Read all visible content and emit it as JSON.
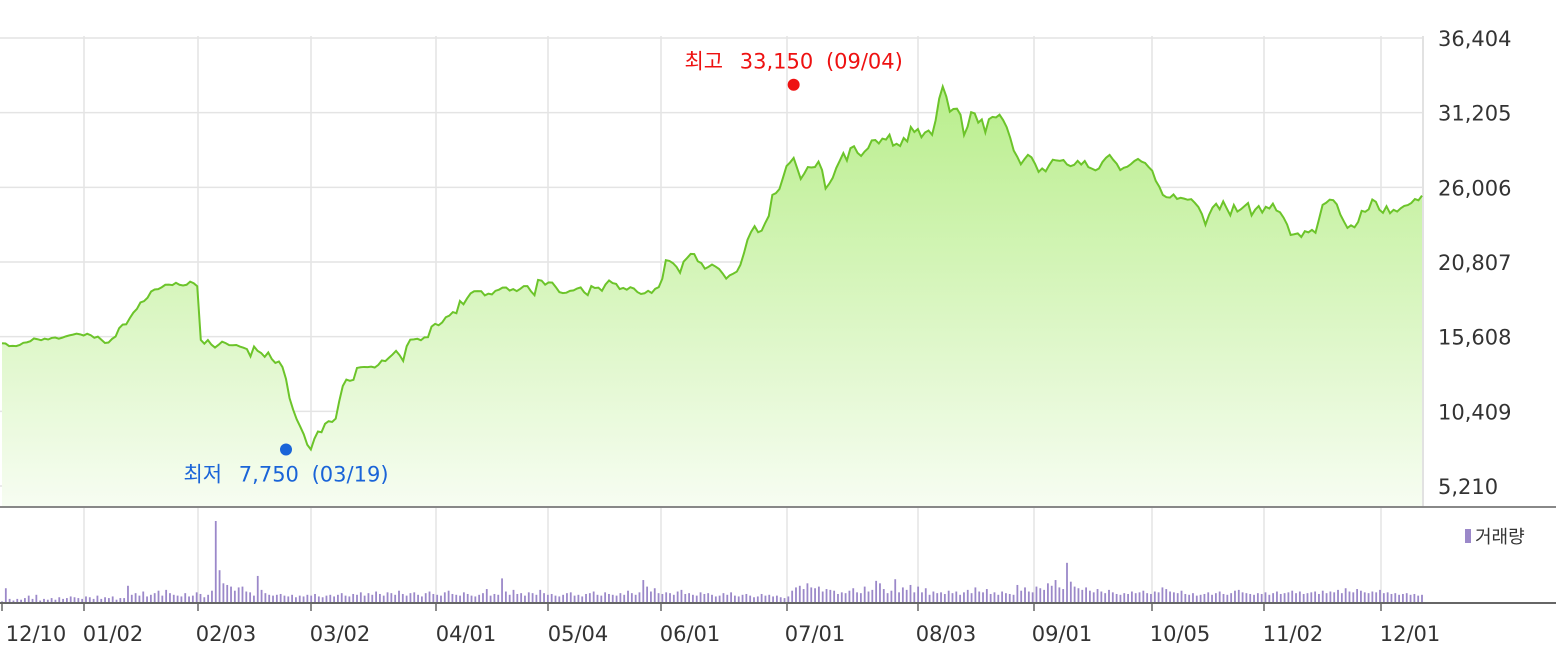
{
  "chart_data": [
    {
      "type": "area",
      "title": "",
      "xlabel": "",
      "ylabel": "",
      "ylim": [
        5210,
        36404
      ],
      "y_ticks": [
        "36,404",
        "31,205",
        "26,006",
        "20,807",
        "15,608",
        "10,409",
        "5,210"
      ],
      "y_tick_values": [
        36404,
        31205,
        26006,
        20807,
        15608,
        10409,
        5210
      ],
      "x_ticks": [
        "12/10",
        "01/02",
        "02/03",
        "03/02",
        "04/01",
        "05/04",
        "06/01",
        "07/01",
        "08/03",
        "09/01",
        "10/05",
        "11/02",
        "12/01"
      ],
      "grid": true,
      "colors": {
        "line": "#6cc42a",
        "fill_top": "#b9ee8c",
        "fill_bottom": "#f7fdf2",
        "high": "#ee1111",
        "low": "#1a64d8"
      },
      "high": {
        "label": "최고",
        "value_text": "33,150",
        "date": "(09/04)",
        "value": 33150,
        "x_index": 223
      },
      "low": {
        "label": "최저",
        "value_text": "7,750",
        "date": "(03/19)",
        "value": 7750,
        "x_index": 80
      },
      "series": [
        {
          "values": [
            15150,
            15130,
            14950,
            14970,
            14950,
            15030,
            15180,
            15210,
            15290,
            15480,
            15430,
            15360,
            15470,
            15410,
            15520,
            15550,
            15470,
            15540,
            15630,
            15700,
            15750,
            15820,
            15770,
            15690,
            15810,
            15710,
            15530,
            15610,
            15390,
            15170,
            15200,
            15450,
            15620,
            16200,
            16450,
            16470,
            16900,
            17280,
            17540,
            17990,
            18080,
            18320,
            18750,
            18890,
            18920,
            19050,
            19220,
            19230,
            19200,
            19360,
            19220,
            19170,
            19220,
            19440,
            19330,
            19120,
            15380,
            15120,
            15370,
            15050,
            14850,
            15040,
            15260,
            15160,
            15020,
            15010,
            15030,
            14920,
            14840,
            14740,
            14230,
            14920,
            14620,
            14470,
            14200,
            14510,
            14050,
            13780,
            13880,
            13490,
            12660,
            11330,
            10530,
            9860,
            9350,
            8810,
            8080,
            7750,
            8500,
            9000,
            8950,
            9540,
            9720,
            9670,
            9900,
            11120,
            12170,
            12620,
            12530,
            12600,
            13430,
            13480,
            13500,
            13490,
            13520,
            13460,
            13640,
            13950,
            13910,
            14140,
            14360,
            14620,
            14320,
            13920,
            14940,
            15400,
            15420,
            15460,
            15360,
            15560,
            15570,
            16310,
            16500,
            16400,
            16600,
            16960,
            17070,
            17320,
            17240,
            18090,
            17860,
            18270,
            18620,
            18770,
            18780,
            18770,
            18480,
            18600,
            18550,
            18800,
            18880,
            19020,
            19030,
            18820,
            18920,
            18780,
            18940,
            19130,
            19130,
            18770,
            18500,
            19560,
            19510,
            19230,
            19390,
            19370,
            19060,
            18710,
            18640,
            18670,
            18800,
            18830,
            18960,
            19040,
            18700,
            18500,
            19130,
            19000,
            19020,
            18800,
            19240,
            19520,
            19340,
            19280,
            18920,
            19000,
            18880,
            19050,
            18960,
            18710,
            18580,
            18630,
            18800,
            18650,
            18940,
            19060,
            19640,
            20930,
            20880,
            20730,
            20470,
            20060,
            20830,
            21090,
            21370,
            21360,
            20860,
            20730,
            20340,
            20470,
            20630,
            20490,
            20320,
            20010,
            19650,
            19880,
            20000,
            20140,
            20610,
            21420,
            22350,
            22900,
            23300,
            22880,
            22990,
            23530,
            24010,
            25480,
            25600,
            25890,
            26680,
            27490,
            27740,
            28050,
            27330,
            26590,
            26970,
            27420,
            27390,
            27420,
            27800,
            27210,
            25920,
            26250,
            26660,
            27350,
            27860,
            28390,
            27870,
            28730,
            28870,
            28410,
            28190,
            28500,
            28730,
            29270,
            29300,
            29060,
            29400,
            29330,
            29670,
            28910,
            29040,
            28880,
            29440,
            29200,
            30210,
            29860,
            30070,
            29490,
            29820,
            29960,
            29660,
            30680,
            32180,
            33020,
            32330,
            31270,
            31460,
            31480,
            31060,
            29640,
            30230,
            31240,
            31150,
            30510,
            30730,
            29830,
            30750,
            30910,
            30870,
            31060,
            30690,
            30200,
            29460,
            28560,
            28130,
            27610,
            27960,
            28270,
            28100,
            27640,
            27080,
            27320,
            27120,
            27560,
            27930,
            27880,
            27850,
            27910,
            27600,
            27480,
            27570,
            27850,
            27590,
            27840,
            27420,
            27310,
            27190,
            27320,
            27770,
            28070,
            28260,
            27930,
            27650,
            27210,
            27370,
            27440,
            27620,
            27840,
            27980,
            27800,
            27700,
            27420,
            27170,
            26460,
            26050,
            25480,
            25320,
            25290,
            25510,
            25200,
            25280,
            25220,
            25140,
            25180,
            24930,
            24640,
            24150,
            23400,
            24080,
            24600,
            24860,
            24480,
            25030,
            24540,
            24060,
            24780,
            24320,
            24480,
            24700,
            24910,
            24050,
            24450,
            24700,
            24250,
            24650,
            24530,
            24870,
            24390,
            24270,
            23900,
            23420,
            22690,
            22740,
            22800,
            22550,
            22950,
            22870,
            23040,
            22840,
            23800,
            24780,
            24930,
            25150,
            25110,
            24820,
            24110,
            23630,
            23180,
            23360,
            23220,
            23590,
            24370,
            24300,
            24480,
            25160,
            25000,
            24440,
            24230,
            24690,
            24200,
            24440,
            24320,
            24550,
            24710,
            24770,
            24920,
            25190,
            25100,
            25430
          ]
        }
      ]
    },
    {
      "type": "bar",
      "title": "",
      "legend": [
        "거래량"
      ],
      "legend_position": "top-right",
      "colors": {
        "bar": "#9b88c9"
      },
      "x_ticks": [
        "12/10",
        "01/02",
        "02/03",
        "03/02",
        "04/01",
        "05/04",
        "06/01",
        "07/01",
        "08/03",
        "09/01",
        "10/05",
        "11/02",
        "12/01"
      ],
      "values_relative": [
        0.02,
        0.18,
        0.05,
        0.03,
        0.05,
        0.04,
        0.06,
        0.09,
        0.05,
        0.1,
        0.03,
        0.05,
        0.04,
        0.06,
        0.04,
        0.07,
        0.05,
        0.06,
        0.08,
        0.07,
        0.06,
        0.05,
        0.08,
        0.07,
        0.05,
        0.09,
        0.05,
        0.07,
        0.06,
        0.08,
        0.04,
        0.06,
        0.06,
        0.21,
        0.1,
        0.12,
        0.09,
        0.14,
        0.08,
        0.1,
        0.12,
        0.15,
        0.09,
        0.16,
        0.12,
        0.1,
        0.09,
        0.08,
        0.12,
        0.08,
        0.09,
        0.13,
        0.11,
        0.07,
        0.1,
        0.15,
        1.0,
        0.4,
        0.24,
        0.22,
        0.2,
        0.15,
        0.19,
        0.2,
        0.14,
        0.13,
        0.09,
        0.33,
        0.16,
        0.12,
        0.1,
        0.09,
        0.1,
        0.11,
        0.09,
        0.08,
        0.1,
        0.07,
        0.09,
        0.08,
        0.1,
        0.09,
        0.11,
        0.08,
        0.07,
        0.09,
        0.1,
        0.08,
        0.1,
        0.12,
        0.09,
        0.08,
        0.11,
        0.1,
        0.13,
        0.09,
        0.12,
        0.1,
        0.14,
        0.11,
        0.09,
        0.13,
        0.12,
        0.1,
        0.15,
        0.11,
        0.09,
        0.12,
        0.13,
        0.1,
        0.08,
        0.12,
        0.14,
        0.11,
        0.1,
        0.09,
        0.13,
        0.15,
        0.11,
        0.1,
        0.09,
        0.13,
        0.11,
        0.09,
        0.08,
        0.1,
        0.12,
        0.17,
        0.09,
        0.11,
        0.1,
        0.3,
        0.14,
        0.1,
        0.16,
        0.11,
        0.12,
        0.09,
        0.13,
        0.12,
        0.1,
        0.16,
        0.12,
        0.1,
        0.11,
        0.09,
        0.08,
        0.1,
        0.12,
        0.13,
        0.09,
        0.1,
        0.08,
        0.11,
        0.12,
        0.14,
        0.1,
        0.09,
        0.13,
        0.11,
        0.1,
        0.09,
        0.12,
        0.1,
        0.15,
        0.12,
        0.1,
        0.13,
        0.28,
        0.2,
        0.14,
        0.18,
        0.12,
        0.11,
        0.13,
        0.12,
        0.1,
        0.14,
        0.16,
        0.11,
        0.12,
        0.1,
        0.09,
        0.13,
        0.11,
        0.12,
        0.1,
        0.08,
        0.09,
        0.12,
        0.1,
        0.13,
        0.09,
        0.08,
        0.1,
        0.11,
        0.09,
        0.07,
        0.08,
        0.11,
        0.09,
        0.1,
        0.08,
        0.09,
        0.07,
        0.06,
        0.08,
        0.15,
        0.19,
        0.21,
        0.17,
        0.24,
        0.19,
        0.18,
        0.2,
        0.14,
        0.17,
        0.16,
        0.15,
        0.11,
        0.13,
        0.12,
        0.15,
        0.18,
        0.13,
        0.12,
        0.2,
        0.14,
        0.16,
        0.27,
        0.24,
        0.17,
        0.12,
        0.15,
        0.29,
        0.13,
        0.19,
        0.16,
        0.22,
        0.13,
        0.2,
        0.13,
        0.18,
        0.1,
        0.14,
        0.12,
        0.13,
        0.11,
        0.15,
        0.12,
        0.14,
        0.1,
        0.13,
        0.16,
        0.12,
        0.19,
        0.14,
        0.13,
        0.17,
        0.11,
        0.13,
        0.1,
        0.14,
        0.12,
        0.11,
        0.1,
        0.22,
        0.15,
        0.19,
        0.14,
        0.13,
        0.2,
        0.18,
        0.16,
        0.24,
        0.21,
        0.28,
        0.19,
        0.17,
        0.49,
        0.26,
        0.2,
        0.18,
        0.16,
        0.19,
        0.15,
        0.13,
        0.17,
        0.14,
        0.12,
        0.16,
        0.13,
        0.11,
        0.1,
        0.12,
        0.11,
        0.14,
        0.12,
        0.13,
        0.15,
        0.12,
        0.11,
        0.14,
        0.13,
        0.19,
        0.17,
        0.14,
        0.13,
        0.12,
        0.15,
        0.11,
        0.1,
        0.12,
        0.09,
        0.1,
        0.11,
        0.13,
        0.1,
        0.12,
        0.14,
        0.11,
        0.1,
        0.12,
        0.15,
        0.16,
        0.13,
        0.12,
        0.11,
        0.1,
        0.12,
        0.11,
        0.13,
        0.1,
        0.12,
        0.14,
        0.11,
        0.12,
        0.13,
        0.15,
        0.12,
        0.14,
        0.11,
        0.12,
        0.13,
        0.14,
        0.11,
        0.15,
        0.12,
        0.14,
        0.13,
        0.16,
        0.12,
        0.18,
        0.14,
        0.13,
        0.17,
        0.15,
        0.13,
        0.12,
        0.14,
        0.13,
        0.16,
        0.12,
        0.13,
        0.11,
        0.12,
        0.1,
        0.11,
        0.12,
        0.1,
        0.11,
        0.09,
        0.1
      ]
    }
  ]
}
